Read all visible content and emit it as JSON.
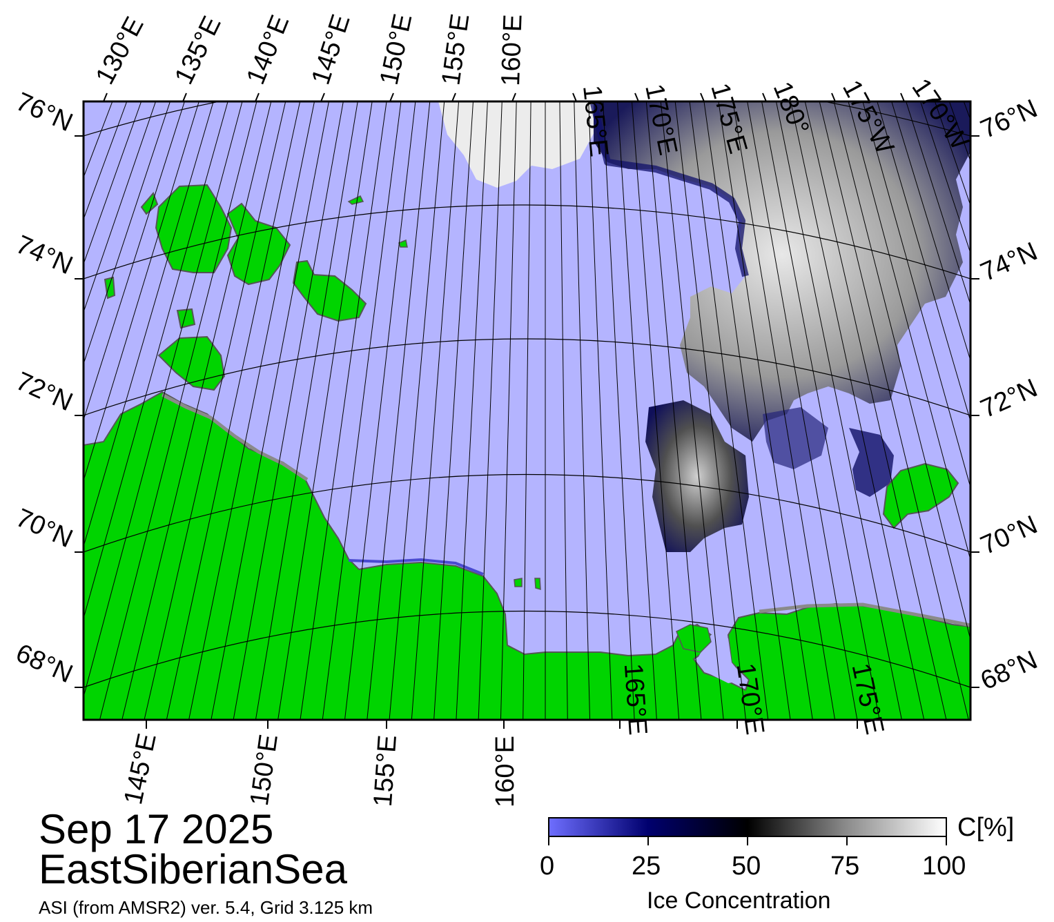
{
  "title": {
    "date": "Sep 17 2025",
    "region": "EastSiberianSea",
    "source": "ASI (from AMSR2) ver. 5.4,  Grid 3.125 km"
  },
  "colors": {
    "open_water": "#b4b4ff",
    "land": "#00d400",
    "coast_shadow": "#8a8a8a",
    "frame": "#000000",
    "graticule": "#000000"
  },
  "top_axis_labels": [
    "130°E",
    "135°E",
    "140°E",
    "145°E",
    "150°E",
    "155°E",
    "160°E",
    "165°E",
    "170°E",
    "175°E",
    "180°",
    "175°W",
    "170°W"
  ],
  "bottom_axis_labels": [
    "145°E",
    "150°E",
    "155°E",
    "160°E",
    "165°E",
    "170°E",
    "175°E"
  ],
  "left_axis_labels": [
    "76°N",
    "74°N",
    "72°N",
    "70°N",
    "68°N"
  ],
  "right_axis_labels": [
    "76°N",
    "74°N",
    "72°N",
    "70°N",
    "68°N"
  ],
  "colorbar": {
    "unit_label": "C[%]",
    "caption": "Ice Concentration",
    "ticks": [
      "0",
      "25",
      "50",
      "75",
      "100"
    ],
    "stops": [
      "#6e6eff",
      "#00006e",
      "#000000",
      "#8c8c8c",
      "#ffffff"
    ]
  }
}
